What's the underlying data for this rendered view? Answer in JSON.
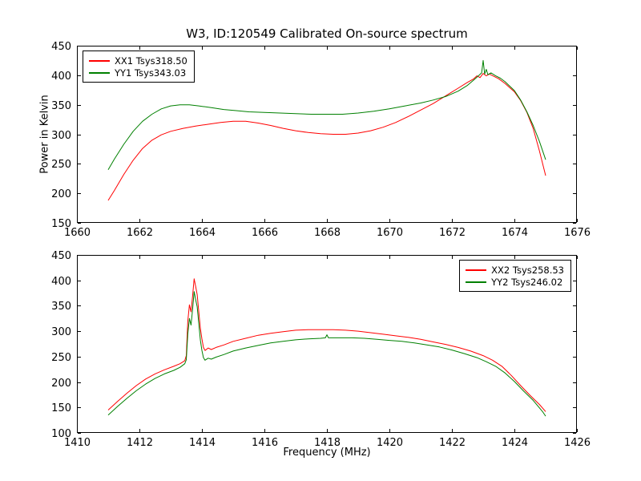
{
  "figure": {
    "title": "W3, ID:120549 Calibrated On-source spectrum",
    "xlabel": "Frequency (MHz)",
    "ylabel": "Power in Kelvin",
    "background": "#ffffff"
  },
  "chart_data": [
    {
      "type": "line",
      "title": "W3, ID:120549 Calibrated On-source spectrum",
      "xlabel": "",
      "ylabel": "Power in Kelvin",
      "xlim": [
        1660,
        1676
      ],
      "ylim": [
        150,
        450
      ],
      "xticks": [
        1660,
        1662,
        1664,
        1666,
        1668,
        1670,
        1672,
        1674,
        1676
      ],
      "yticks": [
        150,
        200,
        250,
        300,
        350,
        400,
        450
      ],
      "grid": false,
      "legend_position": "upper left",
      "series": [
        {
          "name": "XX1 Tsys318.50",
          "color": "#ff0000",
          "points": [
            [
              1661.0,
              188
            ],
            [
              1661.2,
              205
            ],
            [
              1661.5,
              232
            ],
            [
              1661.8,
              256
            ],
            [
              1662.1,
              276
            ],
            [
              1662.4,
              290
            ],
            [
              1662.7,
              299
            ],
            [
              1663.0,
              305
            ],
            [
              1663.4,
              310
            ],
            [
              1663.8,
              314
            ],
            [
              1664.2,
              317
            ],
            [
              1664.6,
              320
            ],
            [
              1665.0,
              322
            ],
            [
              1665.4,
              322
            ],
            [
              1665.8,
              319
            ],
            [
              1666.2,
              315
            ],
            [
              1666.6,
              310
            ],
            [
              1667.0,
              306
            ],
            [
              1667.4,
              303
            ],
            [
              1667.8,
              301
            ],
            [
              1668.2,
              300
            ],
            [
              1668.6,
              300
            ],
            [
              1669.0,
              302
            ],
            [
              1669.4,
              306
            ],
            [
              1669.8,
              312
            ],
            [
              1670.2,
              320
            ],
            [
              1670.6,
              330
            ],
            [
              1671.0,
              341
            ],
            [
              1671.4,
              352
            ],
            [
              1671.8,
              365
            ],
            [
              1672.2,
              378
            ],
            [
              1672.5,
              388
            ],
            [
              1672.7,
              394
            ],
            [
              1672.8,
              399
            ],
            [
              1672.9,
              396
            ],
            [
              1673.0,
              403
            ],
            [
              1673.1,
              399
            ],
            [
              1673.2,
              402
            ],
            [
              1673.35,
              398
            ],
            [
              1673.5,
              394
            ],
            [
              1673.7,
              386
            ],
            [
              1674.0,
              372
            ],
            [
              1674.2,
              357
            ],
            [
              1674.4,
              337
            ],
            [
              1674.6,
              310
            ],
            [
              1674.8,
              272
            ],
            [
              1675.0,
              230
            ]
          ]
        },
        {
          "name": "YY1 Tsys343.03",
          "color": "#008000",
          "points": [
            [
              1661.0,
              240
            ],
            [
              1661.2,
              258
            ],
            [
              1661.5,
              283
            ],
            [
              1661.8,
              305
            ],
            [
              1662.1,
              322
            ],
            [
              1662.4,
              334
            ],
            [
              1662.7,
              343
            ],
            [
              1663.0,
              348
            ],
            [
              1663.3,
              350
            ],
            [
              1663.6,
              350
            ],
            [
              1663.9,
              348
            ],
            [
              1664.3,
              345
            ],
            [
              1664.7,
              342
            ],
            [
              1665.1,
              340
            ],
            [
              1665.5,
              338
            ],
            [
              1666.0,
              337
            ],
            [
              1666.5,
              336
            ],
            [
              1667.0,
              335
            ],
            [
              1667.5,
              334
            ],
            [
              1668.0,
              334
            ],
            [
              1668.5,
              334
            ],
            [
              1669.0,
              336
            ],
            [
              1669.5,
              339
            ],
            [
              1670.0,
              343
            ],
            [
              1670.5,
              348
            ],
            [
              1671.0,
              353
            ],
            [
              1671.4,
              358
            ],
            [
              1671.8,
              364
            ],
            [
              1672.2,
              373
            ],
            [
              1672.5,
              383
            ],
            [
              1672.7,
              392
            ],
            [
              1672.85,
              399
            ],
            [
              1672.95,
              404
            ],
            [
              1673.0,
              425
            ],
            [
              1673.05,
              402
            ],
            [
              1673.1,
              410
            ],
            [
              1673.15,
              401
            ],
            [
              1673.25,
              404
            ],
            [
              1673.4,
              399
            ],
            [
              1673.55,
              395
            ],
            [
              1673.7,
              389
            ],
            [
              1674.0,
              374
            ],
            [
              1674.2,
              358
            ],
            [
              1674.4,
              338
            ],
            [
              1674.6,
              315
            ],
            [
              1674.8,
              288
            ],
            [
              1675.0,
              257
            ]
          ]
        }
      ]
    },
    {
      "type": "line",
      "title": "",
      "xlabel": "Frequency (MHz)",
      "ylabel": "",
      "xlim": [
        1410,
        1426
      ],
      "ylim": [
        100,
        450
      ],
      "xticks": [
        1410,
        1412,
        1414,
        1416,
        1418,
        1420,
        1422,
        1424,
        1426
      ],
      "yticks": [
        100,
        150,
        200,
        250,
        300,
        350,
        400,
        450
      ],
      "grid": false,
      "legend_position": "upper right",
      "series": [
        {
          "name": "XX2 Tsys258.53",
          "color": "#ff0000",
          "points": [
            [
              1411.0,
              145
            ],
            [
              1411.3,
              162
            ],
            [
              1411.6,
              178
            ],
            [
              1411.9,
              193
            ],
            [
              1412.2,
              206
            ],
            [
              1412.5,
              216
            ],
            [
              1412.8,
              224
            ],
            [
              1413.1,
              231
            ],
            [
              1413.3,
              236
            ],
            [
              1413.45,
              242
            ],
            [
              1413.5,
              252
            ],
            [
              1413.55,
              320
            ],
            [
              1413.6,
              352
            ],
            [
              1413.65,
              338
            ],
            [
              1413.7,
              368
            ],
            [
              1413.75,
              403
            ],
            [
              1413.8,
              388
            ],
            [
              1413.85,
              372
            ],
            [
              1413.9,
              338
            ],
            [
              1413.95,
              305
            ],
            [
              1414.0,
              285
            ],
            [
              1414.05,
              268
            ],
            [
              1414.1,
              262
            ],
            [
              1414.2,
              267
            ],
            [
              1414.3,
              264
            ],
            [
              1414.45,
              268
            ],
            [
              1414.7,
              273
            ],
            [
              1415.0,
              280
            ],
            [
              1415.4,
              286
            ],
            [
              1415.8,
              292
            ],
            [
              1416.2,
              296
            ],
            [
              1416.6,
              299
            ],
            [
              1417.0,
              302
            ],
            [
              1417.4,
              303
            ],
            [
              1417.8,
              303
            ],
            [
              1418.2,
              303
            ],
            [
              1418.6,
              302
            ],
            [
              1419.0,
              300
            ],
            [
              1419.4,
              297
            ],
            [
              1419.8,
              294
            ],
            [
              1420.2,
              291
            ],
            [
              1420.6,
              288
            ],
            [
              1421.0,
              284
            ],
            [
              1421.4,
              279
            ],
            [
              1421.8,
              274
            ],
            [
              1422.2,
              268
            ],
            [
              1422.6,
              261
            ],
            [
              1423.0,
              252
            ],
            [
              1423.3,
              243
            ],
            [
              1423.6,
              231
            ],
            [
              1423.9,
              213
            ],
            [
              1424.2,
              193
            ],
            [
              1424.5,
              174
            ],
            [
              1424.8,
              156
            ],
            [
              1425.0,
              142
            ]
          ]
        },
        {
          "name": "YY2 Tsys246.02",
          "color": "#008000",
          "points": [
            [
              1411.0,
              135
            ],
            [
              1411.3,
              152
            ],
            [
              1411.6,
              168
            ],
            [
              1411.9,
              183
            ],
            [
              1412.2,
              196
            ],
            [
              1412.5,
              207
            ],
            [
              1412.8,
              216
            ],
            [
              1413.1,
              223
            ],
            [
              1413.3,
              229
            ],
            [
              1413.45,
              236
            ],
            [
              1413.5,
              244
            ],
            [
              1413.55,
              295
            ],
            [
              1413.6,
              325
            ],
            [
              1413.65,
              312
            ],
            [
              1413.7,
              342
            ],
            [
              1413.75,
              378
            ],
            [
              1413.8,
              362
            ],
            [
              1413.85,
              348
            ],
            [
              1413.9,
              315
            ],
            [
              1413.95,
              282
            ],
            [
              1414.0,
              262
            ],
            [
              1414.05,
              248
            ],
            [
              1414.1,
              243
            ],
            [
              1414.2,
              247
            ],
            [
              1414.3,
              245
            ],
            [
              1414.45,
              249
            ],
            [
              1414.7,
              254
            ],
            [
              1415.0,
              261
            ],
            [
              1415.4,
              267
            ],
            [
              1415.8,
              272
            ],
            [
              1416.2,
              277
            ],
            [
              1416.6,
              280
            ],
            [
              1417.0,
              283
            ],
            [
              1417.4,
              285
            ],
            [
              1417.8,
              286
            ],
            [
              1417.95,
              287
            ],
            [
              1418.0,
              293
            ],
            [
              1418.05,
              287
            ],
            [
              1418.4,
              287
            ],
            [
              1418.8,
              287
            ],
            [
              1419.2,
              286
            ],
            [
              1419.6,
              284
            ],
            [
              1420.0,
              282
            ],
            [
              1420.4,
              280
            ],
            [
              1420.8,
              277
            ],
            [
              1421.2,
              273
            ],
            [
              1421.6,
              269
            ],
            [
              1422.0,
              263
            ],
            [
              1422.4,
              256
            ],
            [
              1422.8,
              248
            ],
            [
              1423.1,
              240
            ],
            [
              1423.4,
              231
            ],
            [
              1423.7,
              218
            ],
            [
              1424.0,
              201
            ],
            [
              1424.3,
              182
            ],
            [
              1424.6,
              164
            ],
            [
              1424.9,
              142
            ],
            [
              1425.0,
              133
            ]
          ]
        }
      ]
    }
  ]
}
